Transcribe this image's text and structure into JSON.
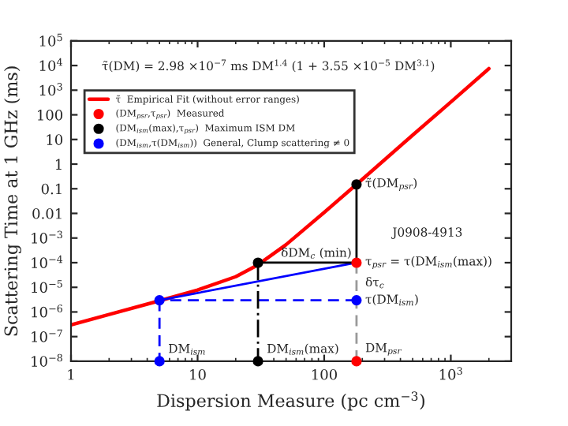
{
  "chart_data": {
    "type": "line",
    "xlabel": "Dispersion Measure (pc cm$^{−3}$)",
    "ylabel": "Scattering Time at 1 GHz (ms)",
    "log": "xy",
    "xlim": [
      1,
      3000
    ],
    "ylim": [
      1e-08,
      100000.0
    ],
    "xticks": [
      1,
      10,
      100,
      {
        "value": 1000,
        "label": "10$^{3}$"
      }
    ],
    "yticks": [
      {
        "value": 1e-08,
        "label": "10$^{−8}$"
      },
      {
        "value": 1e-07,
        "label": "10$^{−7}$"
      },
      {
        "value": 1e-06,
        "label": "10$^{−6}$"
      },
      {
        "value": 1e-05,
        "label": "10$^{−5}$"
      },
      {
        "value": 0.0001,
        "label": "10$^{−4}$"
      },
      {
        "value": 0.001,
        "label": "10$^{−3}$"
      },
      0.01,
      0.1,
      1,
      10,
      100,
      {
        "value": 1000,
        "label": "10$^{3}$"
      },
      {
        "value": 10000,
        "label": "10$^{4}$"
      },
      {
        "value": 100000,
        "label": "10$^{5}$"
      }
    ],
    "legend": "top left",
    "grid": false,
    "series": [
      {
        "name": "τ̃  Empirical Fit (without error ranges)",
        "color": "#ff0000",
        "line_style": "solid",
        "x": [
          1,
          2,
          5,
          10,
          20,
          30,
          50,
          100,
          180,
          300,
          500,
          1000,
          2000
        ],
        "values": [
          3e-07,
          7.9e-07,
          2.85e-06,
          7.8e-06,
          2.7e-05,
          8.2e-05,
          0.00054,
          0.011,
          0.15,
          1.5,
          15,
          330,
          7500
        ]
      },
      {
        "type": "line",
        "color": "#0000ff",
        "line_style": "solid",
        "x": [
          5,
          180
        ],
        "values": [
          3e-06,
          0.0001
        ]
      },
      {
        "type": "line",
        "color": "#0000ff",
        "line_style": "dashed",
        "x": [
          180,
          5
        ],
        "values": [
          3e-06,
          3e-06
        ]
      },
      {
        "type": "line",
        "color": "#0000ff",
        "line_style": "dashed",
        "x": [
          5,
          5
        ],
        "values": [
          3e-06,
          1e-08
        ]
      },
      {
        "type": "line",
        "color": "#000000",
        "line_style": "dashdot",
        "x": [
          30,
          30
        ],
        "values": [
          0.0001,
          1e-08
        ]
      },
      {
        "type": "line",
        "color": "#999999",
        "line_style": "dashed",
        "x": [
          180,
          180
        ],
        "values": [
          1e-08,
          0.0001
        ]
      },
      {
        "type": "line",
        "color": "#000000",
        "line_style": "solid",
        "x": [
          180,
          180
        ],
        "values": [
          0.15,
          0.0001
        ]
      },
      {
        "type": "line",
        "color": "#000000",
        "line_style": "solid",
        "x": [
          180,
          30
        ],
        "values": [
          0.0001,
          0.0001
        ]
      },
      {
        "name": "(DM$_{psr}$,τ$_{psr}$)  Measured",
        "type": "scatter",
        "color": "#ff0000",
        "x": [
          180,
          180
        ],
        "values": [
          0.0001,
          1e-08
        ]
      },
      {
        "name": "(DM$_{ism}$(max),τ$_{psr}$)  Maximum ISM DM",
        "type": "scatter",
        "color": "#000000",
        "x": [
          30,
          30,
          180
        ],
        "values": [
          0.0001,
          1e-08,
          0.15
        ]
      },
      {
        "name": "(DM$_{ism}$,τ(DM$_{ism}$))  General, Clump scattering ≠ 0",
        "type": "scatter",
        "color": "#0000ff",
        "x": [
          5,
          5,
          180
        ],
        "values": [
          3e-06,
          1e-08,
          3e-06
        ]
      }
    ],
    "annotations": [
      "τ̃(DM) = 2.98 ×10$^{−7}$ ms DM$^{1.4}$ (1 + 3.55 ×10$^{−5}$ DM$^{3.1}$)",
      {
        "text": "τ̃(DM$_{psr}$)",
        "x": 180,
        "y": 0.15
      },
      "J0908-4913",
      "δDM$_{c}$ (min)",
      {
        "text": "τ$_{psr}$ = τ(DM$_{ism}$(max))",
        "x": 180,
        "y": 0.0001
      },
      {
        "text": "δτ$_{c}$",
        "x": 180,
        "y": 1.5e-05
      },
      {
        "text": "τ(DM$_{ism}$)",
        "x": 180,
        "y": 3e-06
      },
      {
        "text": "DM$_{ism}$",
        "x": 5,
        "y": 3e-08
      },
      {
        "text": "DM$_{ism}$(max)",
        "x": 30,
        "y": 3e-08
      },
      {
        "text": "DM$_{psr}$",
        "x": 180,
        "y": 3e-08
      }
    ]
  }
}
